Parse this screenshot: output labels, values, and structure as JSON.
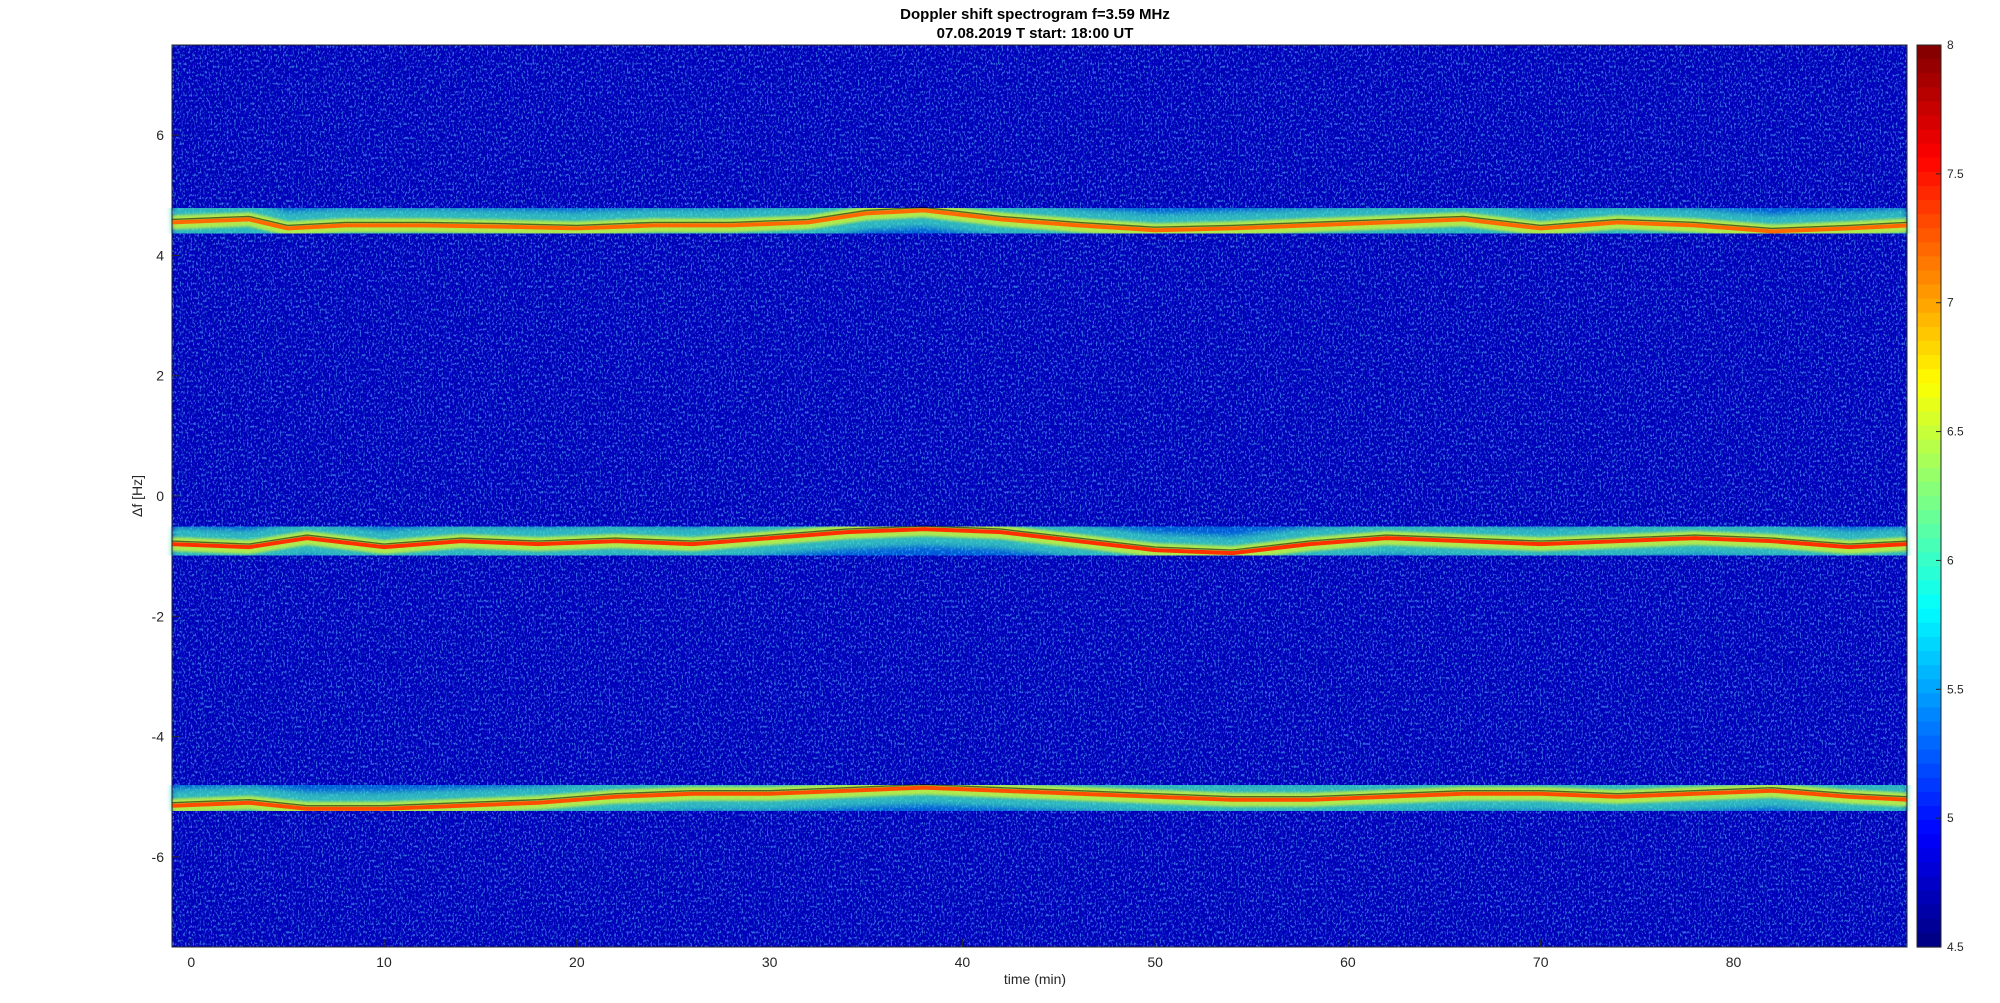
{
  "chart_data": {
    "type": "heatmap",
    "title": "Doppler shift spectrogram f=3.59 MHz",
    "subtitle": "07.08.2019   T start: 18:00 UT",
    "xlabel": "time (min)",
    "ylabel": "Δf [Hz]",
    "xlim": [
      -1,
      89
    ],
    "ylim": [
      -7.5,
      7.5
    ],
    "x_ticks": [
      0,
      10,
      20,
      30,
      40,
      50,
      60,
      70,
      80
    ],
    "x_tick_labels": [
      "0",
      "10",
      "20",
      "30",
      "40",
      "50",
      "60",
      "70",
      "80"
    ],
    "y_ticks": [
      6,
      4,
      2,
      0,
      -2,
      -4,
      -6
    ],
    "y_tick_labels": [
      "6",
      "4",
      "2",
      "0",
      "-2",
      "-4",
      "-6"
    ],
    "colorbar": {
      "colormap": "jet",
      "range": [
        4.5,
        8
      ],
      "ticks": [
        8,
        7.5,
        7,
        6.5,
        6,
        5.5,
        5,
        4.5
      ],
      "tick_labels": [
        "8",
        "7.5",
        "7",
        "6.5",
        "6",
        "5.5",
        "5",
        "4.5"
      ]
    },
    "background_level": 4.7,
    "traces": [
      {
        "x": [
          -1,
          3,
          5,
          8,
          12,
          16,
          20,
          24,
          28,
          32,
          35,
          38,
          42,
          46,
          50,
          54,
          58,
          62,
          66,
          70,
          74,
          78,
          82,
          86,
          89
        ],
        "y": [
          4.55,
          4.6,
          4.45,
          4.5,
          4.5,
          4.48,
          4.45,
          4.5,
          4.5,
          4.55,
          4.7,
          4.75,
          4.6,
          4.5,
          4.42,
          4.45,
          4.5,
          4.55,
          4.6,
          4.45,
          4.55,
          4.5,
          4.4,
          4.45,
          4.5
        ],
        "intensity": 7.2
      },
      {
        "x": [
          -1,
          3,
          6,
          10,
          14,
          18,
          22,
          26,
          30,
          34,
          38,
          42,
          46,
          50,
          54,
          58,
          62,
          66,
          70,
          74,
          78,
          82,
          86,
          89
        ],
        "y": [
          -0.8,
          -0.85,
          -0.7,
          -0.85,
          -0.75,
          -0.8,
          -0.75,
          -0.8,
          -0.7,
          -0.6,
          -0.55,
          -0.6,
          -0.75,
          -0.9,
          -0.95,
          -0.8,
          -0.7,
          -0.75,
          -0.8,
          -0.75,
          -0.7,
          -0.75,
          -0.85,
          -0.8
        ],
        "intensity": 7.4
      },
      {
        "x": [
          -1,
          3,
          6,
          10,
          14,
          18,
          22,
          26,
          30,
          34,
          38,
          42,
          46,
          50,
          54,
          58,
          62,
          66,
          70,
          74,
          78,
          82,
          86,
          89
        ],
        "y": [
          -5.15,
          -5.1,
          -5.2,
          -5.2,
          -5.15,
          -5.1,
          -5.0,
          -4.95,
          -4.95,
          -4.9,
          -4.85,
          -4.9,
          -4.95,
          -5.0,
          -5.05,
          -5.05,
          -5.0,
          -4.95,
          -4.95,
          -5.0,
          -4.95,
          -4.9,
          -5.0,
          -5.05
        ],
        "intensity": 7.3
      }
    ],
    "legend": "none",
    "grid": false
  }
}
